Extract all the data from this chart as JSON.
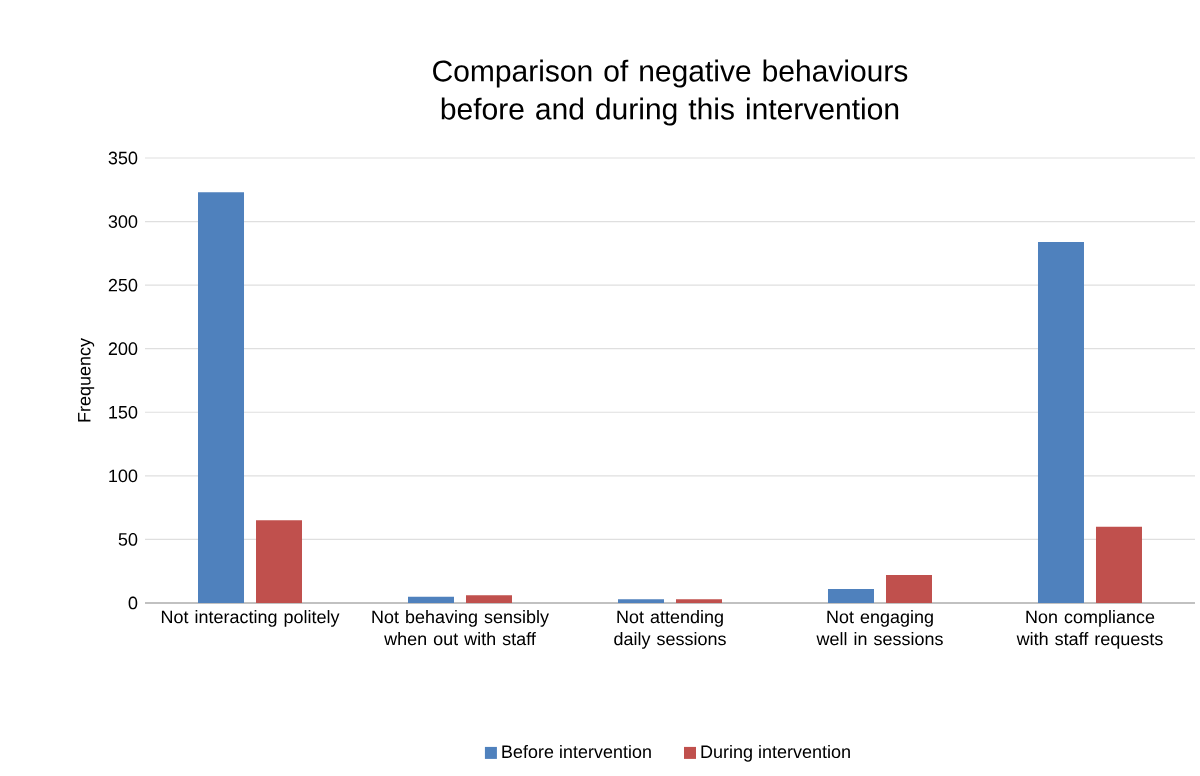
{
  "chart_data": {
    "type": "bar",
    "title": "Comparison of negative behaviours before and during this intervention",
    "ylabel": "Frequency",
    "categories": [
      "Not interacting politely",
      "Not behaving sensibly when out with staff",
      "Not attending daily sessions",
      "Not engaging well in sessions",
      "Non compliance with staff requests"
    ],
    "series": [
      {
        "name": "Before intervention",
        "color": "#4f81bd",
        "values": [
          323,
          5,
          3,
          11,
          284
        ]
      },
      {
        "name": "During intervention",
        "color": "#c0504d",
        "values": [
          65,
          6,
          3,
          22,
          60
        ]
      }
    ],
    "ylim": [
      0,
      350
    ],
    "yticks": [
      0,
      50,
      100,
      150,
      200,
      250,
      300,
      350
    ],
    "grid": "y",
    "legend": "bottom"
  }
}
